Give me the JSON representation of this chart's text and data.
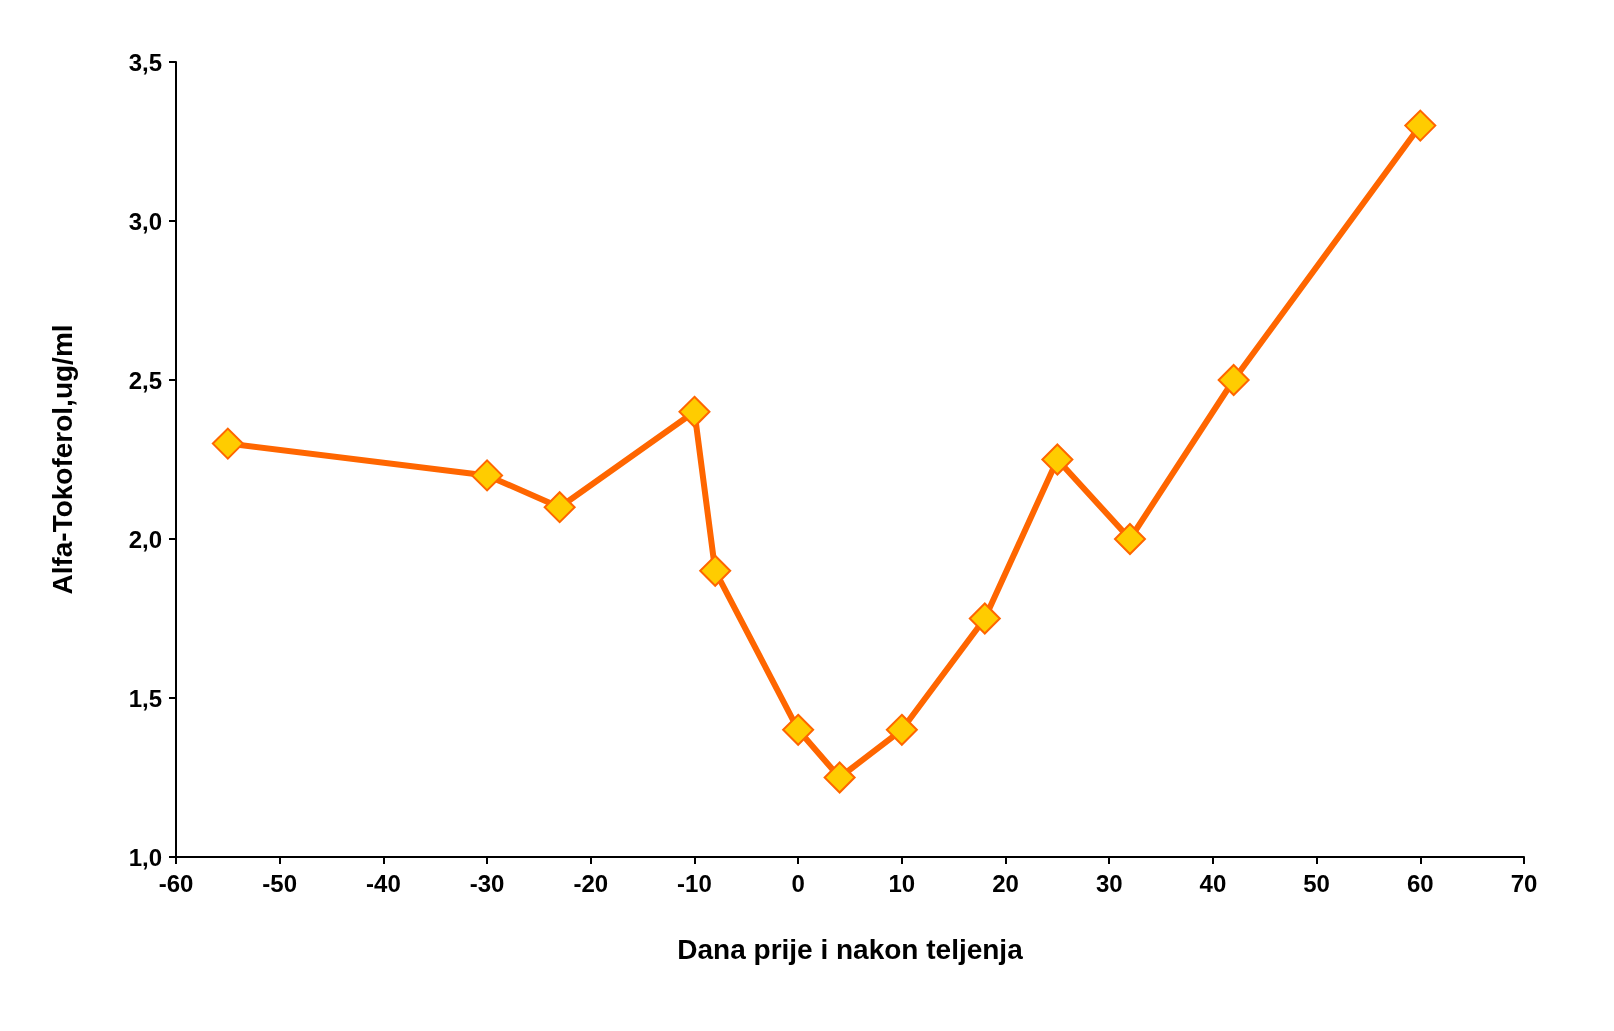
{
  "chart_data": {
    "type": "line",
    "xlabel": "Dana prije i nakon teljenja",
    "ylabel": "Alfa-Tokoferol,ug/ml",
    "x": [
      -55,
      -30,
      -23,
      -10,
      -8,
      0,
      4,
      10,
      18,
      25,
      32,
      42,
      60
    ],
    "series": [
      {
        "color": "#ff6600",
        "values": [
          2.3,
          2.2,
          2.1,
          2.4,
          1.9,
          1.4,
          1.25,
          1.4,
          1.75,
          2.25,
          2.0,
          2.5,
          3.3
        ]
      }
    ],
    "xlim": [
      -60,
      70
    ],
    "xticks": [
      -60,
      -50,
      -40,
      -30,
      -20,
      -10,
      0,
      10,
      20,
      30,
      40,
      50,
      60,
      70
    ],
    "ylim": [
      1.0,
      3.5
    ],
    "yticks": [
      {
        "value": 1.0,
        "label": "1,0"
      },
      {
        "value": 1.5,
        "label": "1,5"
      },
      {
        "value": 2.0,
        "label": "2,0"
      },
      {
        "value": 2.5,
        "label": "2,5"
      },
      {
        "value": 3.0,
        "label": "3,0"
      },
      {
        "value": 3.5,
        "label": "3,5"
      }
    ],
    "grid": false,
    "marker": "diamond",
    "line_style": "solid"
  }
}
